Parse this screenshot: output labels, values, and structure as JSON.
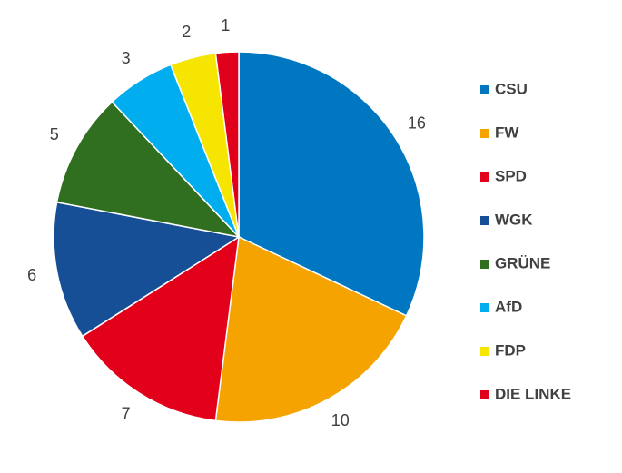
{
  "chart_data": {
    "type": "pie",
    "categories": [
      "CSU",
      "FW",
      "SPD",
      "WGK",
      "GRÜNE",
      "AfD",
      "FDP",
      "DIE LINKE"
    ],
    "values": [
      16,
      10,
      7,
      6,
      5,
      3,
      2,
      1
    ],
    "colors": [
      "#0077c0",
      "#f5a300",
      "#e2001a",
      "#174f97",
      "#2f6f1f",
      "#00aeef",
      "#f5e500",
      "#e0001b"
    ],
    "legend": "right"
  }
}
